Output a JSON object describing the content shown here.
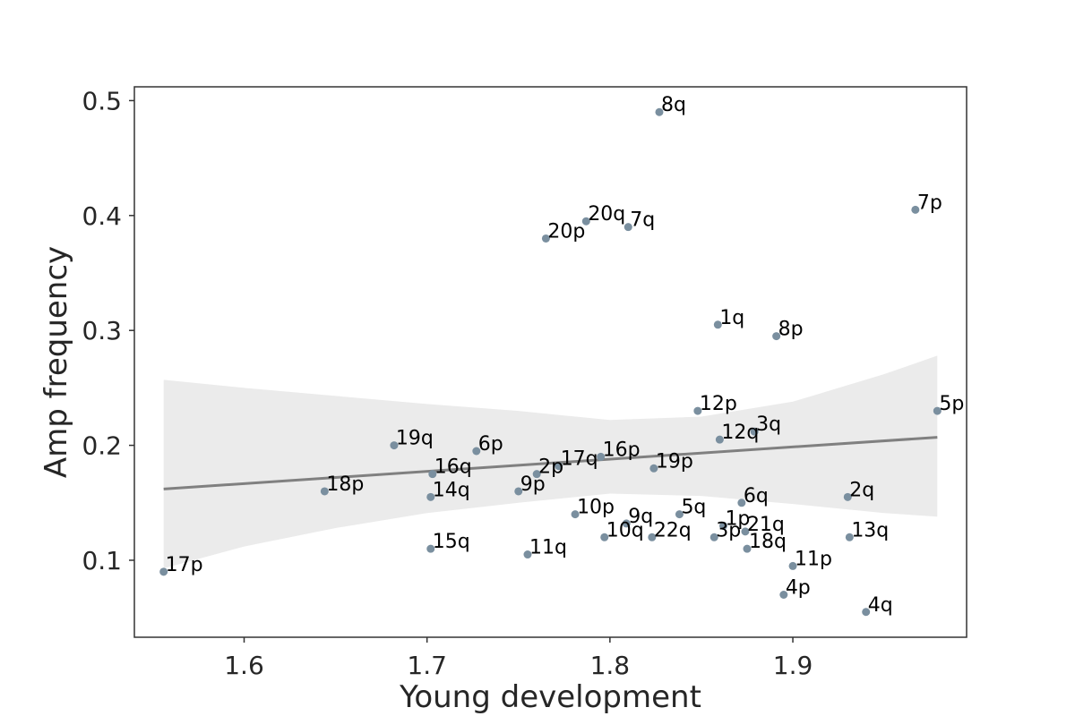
{
  "colors": {
    "point": "#7a8f9f",
    "line": "#808080",
    "band": "#ebebeb",
    "frame": "#333333"
  },
  "chart_data": {
    "type": "scatter",
    "title": "",
    "xlabel": "Young development",
    "ylabel": "Amp frequency",
    "xlim": [
      1.54,
      1.995
    ],
    "ylim": [
      0.033,
      0.512
    ],
    "xticks": [
      1.6,
      1.7,
      1.8,
      1.9
    ],
    "xtick_labels": [
      "1.6",
      "1.7",
      "1.8",
      "1.9"
    ],
    "yticks": [
      0.1,
      0.2,
      0.3,
      0.4,
      0.5
    ],
    "ytick_labels": [
      "0.1",
      "0.2",
      "0.3",
      "0.4",
      "0.5"
    ],
    "grid": false,
    "points": [
      {
        "label": "8q",
        "x": 1.827,
        "y": 0.49
      },
      {
        "label": "7p",
        "x": 1.967,
        "y": 0.405
      },
      {
        "label": "20q",
        "x": 1.787,
        "y": 0.395
      },
      {
        "label": "7q",
        "x": 1.81,
        "y": 0.39
      },
      {
        "label": "20p",
        "x": 1.765,
        "y": 0.38
      },
      {
        "label": "1q",
        "x": 1.859,
        "y": 0.305
      },
      {
        "label": "8p",
        "x": 1.891,
        "y": 0.295
      },
      {
        "label": "12p",
        "x": 1.848,
        "y": 0.23
      },
      {
        "label": "5p",
        "x": 1.979,
        "y": 0.23
      },
      {
        "label": "3q",
        "x": 1.879,
        "y": 0.212
      },
      {
        "label": "12q",
        "x": 1.86,
        "y": 0.205
      },
      {
        "label": "19q",
        "x": 1.682,
        "y": 0.2
      },
      {
        "label": "6p",
        "x": 1.727,
        "y": 0.195
      },
      {
        "label": "16p",
        "x": 1.795,
        "y": 0.19
      },
      {
        "label": "17q",
        "x": 1.772,
        "y": 0.182
      },
      {
        "label": "19p",
        "x": 1.824,
        "y": 0.18
      },
      {
        "label": "16q",
        "x": 1.703,
        "y": 0.175
      },
      {
        "label": "2p",
        "x": 1.76,
        "y": 0.175
      },
      {
        "label": "18p",
        "x": 1.644,
        "y": 0.16
      },
      {
        "label": "9p",
        "x": 1.75,
        "y": 0.16
      },
      {
        "label": "14q",
        "x": 1.702,
        "y": 0.155
      },
      {
        "label": "2q",
        "x": 1.93,
        "y": 0.155
      },
      {
        "label": "6q",
        "x": 1.872,
        "y": 0.15
      },
      {
        "label": "10p",
        "x": 1.781,
        "y": 0.14
      },
      {
        "label": "5q",
        "x": 1.838,
        "y": 0.14
      },
      {
        "label": "9q",
        "x": 1.809,
        "y": 0.132
      },
      {
        "label": "1p",
        "x": 1.862,
        "y": 0.13
      },
      {
        "label": "21q",
        "x": 1.874,
        "y": 0.125
      },
      {
        "label": "10q",
        "x": 1.797,
        "y": 0.12
      },
      {
        "label": "22q",
        "x": 1.823,
        "y": 0.12
      },
      {
        "label": "3p",
        "x": 1.857,
        "y": 0.12
      },
      {
        "label": "13q",
        "x": 1.931,
        "y": 0.12
      },
      {
        "label": "18q",
        "x": 1.875,
        "y": 0.11
      },
      {
        "label": "15q",
        "x": 1.702,
        "y": 0.11
      },
      {
        "label": "11q",
        "x": 1.755,
        "y": 0.105
      },
      {
        "label": "11p",
        "x": 1.9,
        "y": 0.095
      },
      {
        "label": "17p",
        "x": 1.556,
        "y": 0.09
      },
      {
        "label": "4p",
        "x": 1.895,
        "y": 0.07
      },
      {
        "label": "4q",
        "x": 1.94,
        "y": 0.055
      }
    ],
    "regression": {
      "x": [
        1.556,
        1.979
      ],
      "y": [
        0.162,
        0.207
      ]
    },
    "confidence_band": {
      "x": [
        1.556,
        1.6,
        1.65,
        1.7,
        1.75,
        1.8,
        1.85,
        1.9,
        1.95,
        1.979
      ],
      "upper": [
        0.257,
        0.25,
        0.243,
        0.236,
        0.23,
        0.222,
        0.225,
        0.238,
        0.262,
        0.278
      ],
      "lower": [
        0.093,
        0.112,
        0.128,
        0.141,
        0.15,
        0.158,
        0.156,
        0.149,
        0.141,
        0.138
      ]
    }
  }
}
